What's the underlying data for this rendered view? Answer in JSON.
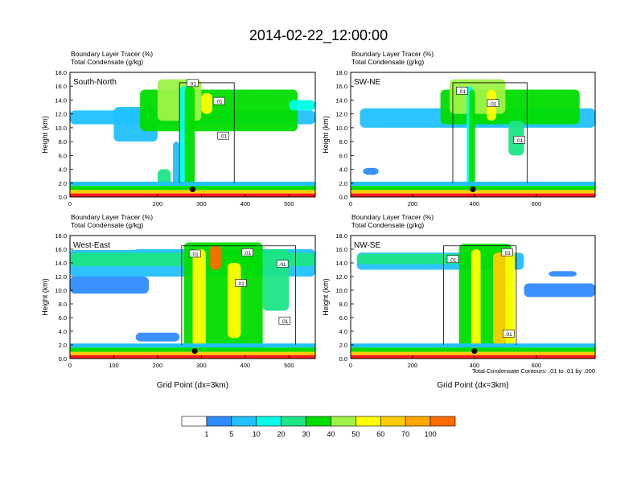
{
  "title": "2014-02-22_12:00:00",
  "footnote": "Total Condensate Contours: .01 to .01 by .000",
  "colors": {
    "levels": [
      "#ffffff",
      "#2e8cff",
      "#21c0ff",
      "#00ffe6",
      "#1be585",
      "#00dd00",
      "#9ef247",
      "#ffff00",
      "#ffcc00",
      "#ffa500",
      "#ff6a00",
      "#ff1a1a"
    ],
    "contour": "#000000",
    "frame": "#000000",
    "marker": "#000000"
  },
  "chart_data": [
    {
      "type": "heatmap",
      "panel": "South-North",
      "subtitle_lines": [
        "Boundary Layer Tracer   (%)",
        "Total Condensate   (g/kg)"
      ],
      "ylabel": "Height (km)",
      "xlabel": "",
      "xlim": [
        0,
        560
      ],
      "ylim": [
        0,
        18
      ],
      "xticks": [
        "0",
        "200",
        "300",
        "400",
        "500"
      ],
      "xtick_values": [
        0,
        200,
        300,
        400,
        500
      ],
      "yticks": [
        "0.0",
        "2.0",
        "4.0",
        "6.0",
        "8.0",
        "10.0",
        "12.0",
        "14.0",
        "16.0",
        "18.0"
      ],
      "contour_labels": [
        ".01",
        ".01",
        ".01"
      ],
      "contour_label_positions": [
        [
          280,
          16.4
        ],
        [
          340,
          13.8
        ],
        [
          350,
          8.8
        ]
      ],
      "marker": [
        280,
        1.1
      ],
      "grid": false
    },
    {
      "type": "heatmap",
      "panel": "SW-NE",
      "subtitle_lines": [
        "Boundary Layer Tracer   (%)",
        "Total Condensate   (g/kg)"
      ],
      "ylabel": "Height (km)",
      "xlabel": "",
      "xlim": [
        0,
        790
      ],
      "ylim": [
        0,
        18
      ],
      "xticks": [
        "0",
        "200",
        "400",
        "600"
      ],
      "xtick_values": [
        0,
        200,
        400,
        600
      ],
      "yticks": [
        "0.0",
        "2.0",
        "4.0",
        "6.0",
        "8.0",
        "10.0",
        "12.0",
        "14.0",
        "16.0",
        "18.0"
      ],
      "contour_labels": [
        ".01",
        ".01",
        ".01"
      ],
      "contour_label_positions": [
        [
          360,
          15.3
        ],
        [
          460,
          13.5
        ],
        [
          545,
          8.2
        ]
      ],
      "marker": [
        395,
        1.1
      ],
      "grid": false
    },
    {
      "type": "heatmap",
      "panel": "West-East",
      "subtitle_lines": [
        "Boundary Layer Tracer   (%)",
        "Total Condensate   (g/kg)"
      ],
      "ylabel": "Height (km)",
      "xlabel": "Grid Point (dx=3km)",
      "xlim": [
        0,
        560
      ],
      "ylim": [
        0,
        18
      ],
      "xticks": [
        "0",
        "100",
        "200",
        "300",
        "400",
        "500"
      ],
      "xtick_values": [
        0,
        100,
        200,
        300,
        400,
        500
      ],
      "yticks": [
        "0.0",
        "2.0",
        "4.0",
        "6.0",
        "8.0",
        "10.0",
        "12.0",
        "14.0",
        "16.0",
        "18.0"
      ],
      "contour_labels": [
        ".01",
        ".01",
        ".01",
        ".01",
        ".01"
      ],
      "contour_label_positions": [
        [
          285,
          15.3
        ],
        [
          405,
          15.5
        ],
        [
          390,
          11.0
        ],
        [
          485,
          13.8
        ],
        [
          490,
          5.5
        ]
      ],
      "marker": [
        285,
        1.1
      ],
      "grid": false
    },
    {
      "type": "heatmap",
      "panel": "NW-SE",
      "subtitle_lines": [
        "Boundary Layer Tracer   (%)",
        "Total Condensate   (g/kg)"
      ],
      "ylabel": "Height (km)",
      "xlabel": "Grid Point (dx=3km)",
      "xlim": [
        0,
        790
      ],
      "ylim": [
        0,
        18
      ],
      "xticks": [
        "0",
        "200",
        "400",
        "600"
      ],
      "xtick_values": [
        0,
        200,
        400,
        600
      ],
      "yticks": [
        "0.0",
        "2.0",
        "4.0",
        "6.0",
        "8.0",
        "10.0",
        "12.0",
        "14.0",
        "16.0",
        "18.0"
      ],
      "contour_labels": [
        ".01",
        ".01",
        ".01"
      ],
      "contour_label_positions": [
        [
          330,
          14.5
        ],
        [
          505,
          15.5
        ],
        [
          510,
          3.6
        ]
      ],
      "marker": [
        400,
        1.1
      ],
      "grid": false
    }
  ],
  "colorbar": {
    "type": "legend",
    "levels": [
      0,
      1,
      5,
      10,
      20,
      30,
      40,
      50,
      60,
      70,
      100
    ],
    "labels": [
      "1",
      "5",
      "10",
      "20",
      "30",
      "40",
      "50",
      "60",
      "70",
      "100"
    ]
  }
}
